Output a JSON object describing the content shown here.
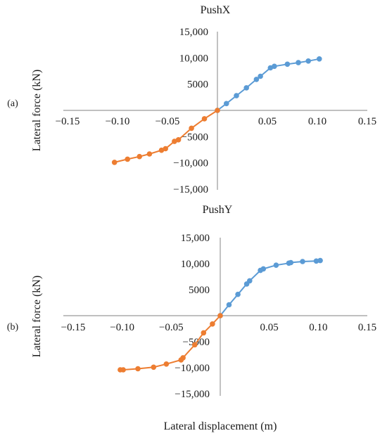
{
  "figure": {
    "xlabel": "Lateral displacement (m)"
  },
  "colors": {
    "positive_series": "#5B9BD5",
    "negative_series": "#ED7D31",
    "axis": "#9a9a9a"
  },
  "chart_data": [
    {
      "type": "line",
      "panel_label": "(a)",
      "title": "PushX",
      "xlabel": "",
      "ylabel": "Lateral force (kN)",
      "xlim": [
        -0.15,
        0.15
      ],
      "ylim": [
        -15000,
        15000
      ],
      "x_ticks": [
        "−0.15",
        "−0.10",
        "−0.05",
        "0.05",
        "0.10",
        "0.15"
      ],
      "x_tick_values": [
        -0.15,
        -0.1,
        -0.05,
        0.05,
        0.1,
        0.15
      ],
      "y_ticks": [
        "15,000",
        "10,000",
        "5000",
        "−5000",
        "−10,000",
        "−15,000"
      ],
      "y_tick_values": [
        15000,
        10000,
        5000,
        -5000,
        -10000,
        -15000
      ],
      "grid": false,
      "series": [
        {
          "color": "#5B9BD5",
          "points": [
            [
              0,
              0
            ],
            [
              0.009,
              1300
            ],
            [
              0.019,
              2800
            ],
            [
              0.029,
              4300
            ],
            [
              0.039,
              5900
            ],
            [
              0.043,
              6500
            ],
            [
              0.053,
              8100
            ],
            [
              0.057,
              8400
            ],
            [
              0.07,
              8800
            ],
            [
              0.081,
              9100
            ],
            [
              0.091,
              9400
            ],
            [
              0.102,
              9800
            ]
          ]
        },
        {
          "color": "#ED7D31",
          "points": [
            [
              0,
              0
            ],
            [
              -0.013,
              -1600
            ],
            [
              -0.026,
              -3400
            ],
            [
              -0.039,
              -5600
            ],
            [
              -0.043,
              -5900
            ],
            [
              -0.052,
              -7300
            ],
            [
              -0.056,
              -7600
            ],
            [
              -0.068,
              -8300
            ],
            [
              -0.078,
              -8800
            ],
            [
              -0.09,
              -9300
            ],
            [
              -0.103,
              -9900
            ]
          ]
        }
      ]
    },
    {
      "type": "line",
      "panel_label": "(b)",
      "title": "PushY",
      "xlabel": "Lateral displacement (m)",
      "ylabel": "Lateral force (kN)",
      "xlim": [
        -0.15,
        0.15
      ],
      "ylim": [
        -15000,
        15000
      ],
      "x_ticks": [
        "−0.15",
        "−0.10",
        "−0.05",
        "0.05",
        "0.10",
        "0.15"
      ],
      "x_tick_values": [
        -0.15,
        -0.1,
        -0.05,
        0.05,
        0.1,
        0.15
      ],
      "y_ticks": [
        "15,000",
        "10,000",
        "5000",
        "−5000",
        "−10,000",
        "−15,000"
      ],
      "y_tick_values": [
        15000,
        10000,
        5000,
        -5000,
        -10000,
        -15000
      ],
      "grid": false,
      "series": [
        {
          "color": "#5B9BD5",
          "points": [
            [
              0,
              0
            ],
            [
              0.009,
              2100
            ],
            [
              0.018,
              4100
            ],
            [
              0.027,
              6100
            ],
            [
              0.03,
              6700
            ],
            [
              0.041,
              8700
            ],
            [
              0.044,
              9000
            ],
            [
              0.057,
              9700
            ],
            [
              0.07,
              10100
            ],
            [
              0.072,
              10200
            ],
            [
              0.084,
              10400
            ],
            [
              0.098,
              10500
            ],
            [
              0.102,
              10600
            ]
          ]
        },
        {
          "color": "#ED7D31",
          "points": [
            [
              0,
              0
            ],
            [
              -0.008,
              -1600
            ],
            [
              -0.017,
              -3300
            ],
            [
              -0.026,
              -5600
            ],
            [
              -0.038,
              -8100
            ],
            [
              -0.04,
              -8500
            ],
            [
              -0.055,
              -9300
            ],
            [
              -0.068,
              -9900
            ],
            [
              -0.084,
              -10200
            ],
            [
              -0.099,
              -10400
            ],
            [
              -0.102,
              -10400
            ]
          ]
        }
      ]
    }
  ]
}
